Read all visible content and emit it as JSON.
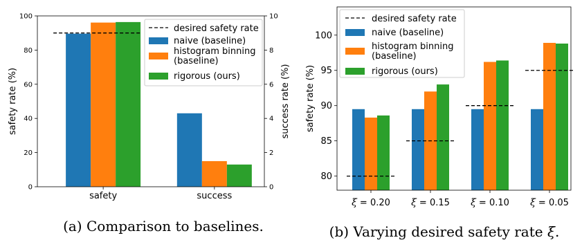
{
  "chart_data": [
    {
      "type": "bar",
      "categories": [
        "safety",
        "success"
      ],
      "series": [
        {
          "name": "naive (baseline)",
          "values": [
            89.6,
            4.3
          ],
          "color": "#1f77b4"
        },
        {
          "name": "histogram binning\n(baseline)",
          "values": [
            96.1,
            1.5
          ],
          "color": "#ff7f0e"
        },
        {
          "name": "rigorous (ours)",
          "values": [
            96.4,
            1.3
          ],
          "color": "#2ca02c"
        }
      ],
      "reference_line": {
        "name": "desired safety rate",
        "value": 90,
        "style": "dashed"
      },
      "ylabel": "safety rate (%)",
      "y2label": "success rate (%)",
      "ylim": [
        0,
        100
      ],
      "y2lim": [
        0,
        10
      ],
      "yticks": [
        0,
        20,
        40,
        60,
        80,
        100
      ],
      "y2ticks": [
        0,
        2,
        4,
        6,
        8,
        10
      ],
      "axes_note": "safety uses left axis, success uses right axis",
      "legend": "top-right",
      "caption": "(a) Comparison to baselines."
    },
    {
      "type": "bar",
      "categories": [
        "ξ = 0.20",
        "ξ = 0.15",
        "ξ = 0.10",
        "ξ = 0.05"
      ],
      "series": [
        {
          "name": "naive (baseline)",
          "values": [
            89.5,
            89.5,
            89.5,
            89.5
          ],
          "color": "#1f77b4"
        },
        {
          "name": "histogram binning\n(baseline)",
          "values": [
            88.3,
            92.0,
            96.2,
            98.9
          ],
          "color": "#ff7f0e"
        },
        {
          "name": "rigorous (ours)",
          "values": [
            88.6,
            93.0,
            96.4,
            98.8
          ],
          "color": "#2ca02c"
        }
      ],
      "reference_line": {
        "name": "desired safety rate",
        "values": [
          80,
          85,
          90,
          95
        ],
        "style": "dashed"
      },
      "ylabel": "safety rate (%)",
      "ylim": [
        78,
        104
      ],
      "yticks": [
        80,
        85,
        90,
        95,
        100
      ],
      "legend": "top-left",
      "caption": "(b) Varying desired safety rate ξ."
    }
  ]
}
